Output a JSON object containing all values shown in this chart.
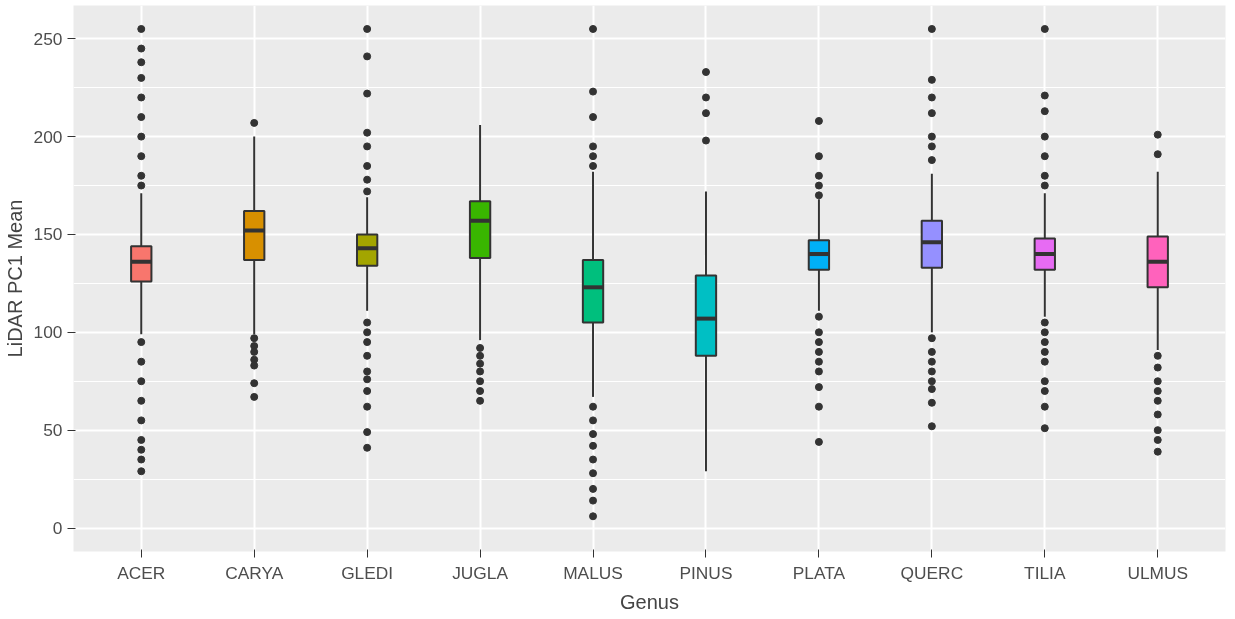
{
  "chart_data": {
    "type": "box",
    "xlabel": "Genus",
    "ylabel": "LiDAR PC1 Mean",
    "categories": [
      "ACER",
      "CARYA",
      "GLEDI",
      "JUGLA",
      "MALUS",
      "PINUS",
      "PLATA",
      "QUERC",
      "TILIA",
      "ULMUS"
    ],
    "colors": [
      "#f8766d",
      "#d89000",
      "#a3a500",
      "#39b600",
      "#00bf7d",
      "#00bfc4",
      "#00b0f6",
      "#9590ff",
      "#e76bf3",
      "#ff62bc"
    ],
    "ylim": [
      -12,
      267
    ],
    "yticks": [
      0,
      50,
      100,
      150,
      200,
      250
    ],
    "grid": true,
    "boxes": [
      {
        "low": 99,
        "q1": 126,
        "median": 136,
        "q3": 144,
        "high": 171,
        "outliers": [
          175,
          180,
          190,
          200,
          210,
          220,
          230,
          238,
          245,
          255,
          95,
          85,
          75,
          65,
          55,
          45,
          40,
          35,
          29
        ]
      },
      {
        "low": 99,
        "q1": 137,
        "median": 152,
        "q3": 162,
        "high": 200,
        "outliers": [
          207,
          97,
          93,
          90,
          86,
          83,
          74,
          67
        ]
      },
      {
        "low": 111,
        "q1": 134,
        "median": 143,
        "q3": 150,
        "high": 169,
        "outliers": [
          255,
          241,
          222,
          202,
          195,
          185,
          178,
          172,
          105,
          100,
          95,
          88,
          80,
          76,
          70,
          62,
          49,
          41
        ]
      },
      {
        "low": 96,
        "q1": 138,
        "median": 157,
        "q3": 167,
        "high": 206,
        "outliers": [
          92,
          88,
          84,
          80,
          75,
          70,
          65
        ]
      },
      {
        "low": 67,
        "q1": 105,
        "median": 123,
        "q3": 137,
        "high": 182,
        "outliers": [
          255,
          223,
          210,
          195,
          190,
          185,
          62,
          55,
          48,
          42,
          35,
          28,
          20,
          14,
          6
        ]
      },
      {
        "low": 29,
        "q1": 88,
        "median": 107,
        "q3": 129,
        "high": 172,
        "outliers": [
          233,
          220,
          212,
          198
        ]
      },
      {
        "low": 111,
        "q1": 132,
        "median": 140,
        "q3": 147,
        "high": 168,
        "outliers": [
          208,
          190,
          180,
          175,
          170,
          108,
          100,
          95,
          90,
          85,
          80,
          72,
          62,
          44
        ]
      },
      {
        "low": 100,
        "q1": 133,
        "median": 146,
        "q3": 157,
        "high": 181,
        "outliers": [
          255,
          229,
          220,
          212,
          200,
          195,
          188,
          97,
          90,
          85,
          80,
          75,
          71,
          64,
          52
        ]
      },
      {
        "low": 108,
        "q1": 132,
        "median": 140,
        "q3": 148,
        "high": 171,
        "outliers": [
          255,
          221,
          213,
          200,
          190,
          180,
          175,
          105,
          100,
          95,
          90,
          85,
          75,
          70,
          62,
          51
        ]
      },
      {
        "low": 91,
        "q1": 123,
        "median": 136,
        "q3": 149,
        "high": 182,
        "outliers": [
          201,
          191,
          88,
          82,
          75,
          70,
          65,
          58,
          50,
          45,
          39
        ]
      }
    ]
  }
}
